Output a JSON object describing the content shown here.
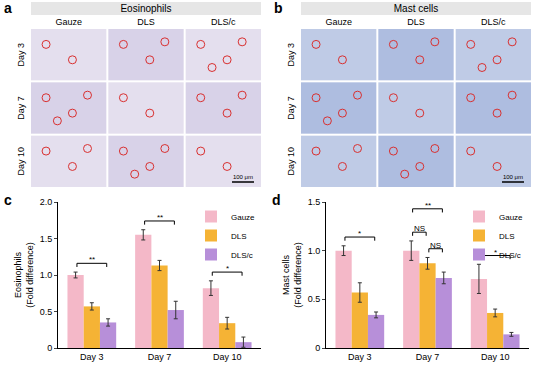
{
  "image_panels": [
    {
      "label": "a",
      "title": "Eosinophils",
      "columns": [
        "Gauze",
        "DLS",
        "DLS/c"
      ],
      "rows": [
        "Day 3",
        "Day 7",
        "Day 10"
      ],
      "scale_bar": "100 μm"
    },
    {
      "label": "b",
      "title": "Mast cells",
      "columns": [
        "Gauze",
        "DLS",
        "DLS/c"
      ],
      "rows": [
        "Day 3",
        "Day 7",
        "Day 10"
      ],
      "scale_bar": "100 μm"
    }
  ],
  "chart_data": [
    {
      "type": "bar",
      "panel": "c",
      "y_label": "Eosinophils\n(Fold difference)",
      "categories": [
        "Day 3",
        "Day 7",
        "Day 10"
      ],
      "series": [
        {
          "name": "Gauze",
          "color": "#f4b8c8",
          "values": [
            1.0,
            1.55,
            0.82
          ],
          "errors": [
            0.04,
            0.07,
            0.1
          ]
        },
        {
          "name": "DLS",
          "color": "#f5b335",
          "values": [
            0.57,
            1.13,
            0.34
          ],
          "errors": [
            0.05,
            0.07,
            0.08
          ]
        },
        {
          "name": "DLS/c",
          "color": "#b78fd9",
          "values": [
            0.35,
            0.52,
            0.08
          ],
          "errors": [
            0.05,
            0.12,
            0.07
          ]
        }
      ],
      "significance": [
        {
          "category": "Day 3",
          "from": "Gauze",
          "to": "DLS/c",
          "label": "**"
        },
        {
          "category": "Day 7",
          "from": "Gauze",
          "to": "DLS/c",
          "label": "**"
        },
        {
          "category": "Day 10",
          "from": "Gauze",
          "to": "DLS/c",
          "label": "*"
        }
      ],
      "ylim": [
        0,
        2.0
      ],
      "yticks": [
        0,
        0.5,
        {
          "value": 1.0,
          "label": "1.0"
        },
        1.5,
        {
          "value": 2.0,
          "label": "2.0"
        }
      ],
      "legend": "upper right",
      "grid": false
    },
    {
      "type": "bar",
      "panel": "d",
      "y_label": "Mast cells\n(Fold difference)",
      "categories": [
        "Day 3",
        "Day 7",
        "Day 10"
      ],
      "series": [
        {
          "name": "Gauze",
          "color": "#f4b8c8",
          "values": [
            1.0,
            1.0,
            0.71
          ],
          "errors": [
            0.05,
            0.1,
            0.15
          ]
        },
        {
          "name": "DLS",
          "color": "#f5b335",
          "values": [
            0.57,
            0.87,
            0.36
          ],
          "errors": [
            0.1,
            0.06,
            0.04
          ]
        },
        {
          "name": "DLS/c",
          "color": "#b78fd9",
          "values": [
            0.34,
            0.72,
            0.14
          ],
          "errors": [
            0.03,
            0.06,
            0.02
          ]
        }
      ],
      "significance": [
        {
          "category": "Day 3",
          "from": "Gauze",
          "to": "DLS/c",
          "label": "*"
        },
        {
          "category": "Day 7",
          "from": "Gauze",
          "to": "DLS",
          "label": "NS"
        },
        {
          "category": "Day 7",
          "from": "DLS",
          "to": "DLS/c",
          "label": "NS"
        },
        {
          "category": "Day 7",
          "from": "Gauze",
          "to": "DLS/c",
          "label": "**"
        },
        {
          "category": "Day 10",
          "from": "Gauze",
          "to": "DLS/c",
          "label": "*"
        }
      ],
      "ylim": [
        0,
        1.5
      ],
      "yticks": [
        0,
        0.5,
        {
          "value": 1.0,
          "label": "1.0"
        },
        1.5
      ],
      "legend": "upper right",
      "grid": false
    }
  ]
}
